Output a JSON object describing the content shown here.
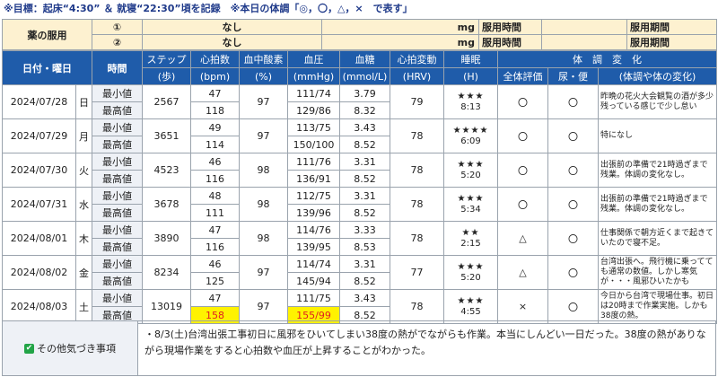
{
  "top_note": {
    "goal": "※目標：起床“4:30” ＆ 就寝“22:30”頃を記録",
    "legend": "※本日の体調「◎，〇，△，×　で表す」"
  },
  "medication": {
    "label": "薬の服用",
    "rows": [
      {
        "num": "①",
        "name": "なし",
        "unit": "mg",
        "time_label": "服用時間",
        "period_label": "服用期間"
      },
      {
        "num": "②",
        "name": "なし",
        "unit": "mg",
        "time_label": "服用時間",
        "period_label": "服用期間"
      }
    ]
  },
  "headers": {
    "date": "日付・曜日",
    "time": "時間",
    "steps": [
      "ステップ",
      "(歩)"
    ],
    "pulse": [
      "心拍数",
      "(bpm)"
    ],
    "spo2": [
      "血中酸素",
      "(%)"
    ],
    "bp": [
      "血圧",
      "(mmHg)"
    ],
    "sugar": [
      "血糖",
      "(mmol/L)"
    ],
    "hrv": [
      "心拍変動",
      "(HRV)"
    ],
    "sleep": [
      "睡眠",
      "(H)"
    ],
    "condition_group": "体　調　変　化",
    "overall": "全体評価",
    "toilet": "尿・便",
    "notes": "(体調や体の変化)"
  },
  "labels": {
    "min": "最小値",
    "max": "最高値"
  },
  "rows": [
    {
      "date": "2024/07/28",
      "day": "日",
      "steps": "2567",
      "pulse_min": "47",
      "pulse_max": "118",
      "spo2": "97",
      "bp_min": "111/74",
      "bp_max": "129/86",
      "sugar_min": "3.79",
      "sugar_max": "8.32",
      "hrv": "79",
      "stars": "★★★",
      "sleep": "8:13",
      "overall": "〇",
      "toilet": "〇",
      "note": "昨晩の花火大会観覧の酒が多少残っている感じで少し怠い"
    },
    {
      "date": "2024/07/29",
      "day": "月",
      "steps": "3651",
      "pulse_min": "49",
      "pulse_max": "114",
      "spo2": "97",
      "bp_min": "113/75",
      "bp_max": "150/100",
      "sugar_min": "3.43",
      "sugar_max": "8.52",
      "hrv": "78",
      "stars": "★★★★",
      "sleep": "6:09",
      "overall": "〇",
      "toilet": "〇",
      "note": "特になし"
    },
    {
      "date": "2024/07/30",
      "day": "火",
      "steps": "4523",
      "pulse_min": "46",
      "pulse_max": "116",
      "spo2": "98",
      "bp_min": "111/76",
      "bp_max": "136/91",
      "sugar_min": "3.31",
      "sugar_max": "8.52",
      "hrv": "78",
      "stars": "★★★",
      "sleep": "5:20",
      "overall": "〇",
      "toilet": "〇",
      "note": "出張前の準備で21時過ぎまで残業。体調の変化なし。"
    },
    {
      "date": "2024/07/31",
      "day": "水",
      "steps": "3678",
      "pulse_min": "48",
      "pulse_max": "111",
      "spo2": "98",
      "bp_min": "112/75",
      "bp_max": "139/96",
      "sugar_min": "3.31",
      "sugar_max": "8.52",
      "hrv": "78",
      "stars": "★★★",
      "sleep": "5:34",
      "overall": "〇",
      "toilet": "〇",
      "note": "出張前の準備で21時過ぎまで残業。体調の変化なし。"
    },
    {
      "date": "2024/08/01",
      "day": "木",
      "steps": "3890",
      "pulse_min": "47",
      "pulse_max": "116",
      "spo2": "98",
      "bp_min": "114/76",
      "bp_max": "139/95",
      "sugar_min": "3.33",
      "sugar_max": "8.53",
      "hrv": "78",
      "stars": "★★",
      "sleep": "2:15",
      "overall": "△",
      "toilet": "〇",
      "note": "仕事関係で朝方近くまで起きていたので寝不足。"
    },
    {
      "date": "2024/08/02",
      "day": "金",
      "steps": "8234",
      "pulse_min": "46",
      "pulse_max": "125",
      "spo2": "97",
      "bp_min": "114/74",
      "bp_max": "145/94",
      "sugar_min": "3.31",
      "sugar_max": "8.52",
      "hrv": "77",
      "stars": "★★★",
      "sleep": "5:20",
      "overall": "△",
      "toilet": "〇",
      "note": "台湾出張へ。飛行機に乗ってても通常の数値。しかし寒気が・・・風邪ひいたかも"
    },
    {
      "date": "2024/08/03",
      "day": "土",
      "steps": "13019",
      "pulse_min": "47",
      "pulse_max": "158",
      "spo2": "97",
      "bp_min": "111/75",
      "bp_max": "155/99",
      "sugar_min": "3.43",
      "sugar_max": "8.52",
      "hrv": "78",
      "stars": "★★★",
      "sleep": "4:55",
      "overall": "×",
      "toilet": "〇",
      "note": "今日から台湾で現場仕事。初日は20時まで作業実施。しかも38度の熱。"
    }
  ],
  "other": {
    "label": "その他気づき事項",
    "text": "・8/3(土)台湾出張工事初日に風邪をひいてしまい38度の熱がでながらも作業。本当にしんどい一日だった。38度の熱がありながら現場作業をすると心拍数や血圧が上昇することがわかった。"
  },
  "colors": {
    "header_bg": "#1f5caa",
    "med_bg": "#fdf1d0",
    "highlight_bg": "#fff200",
    "highlight_text": "#e02020"
  }
}
